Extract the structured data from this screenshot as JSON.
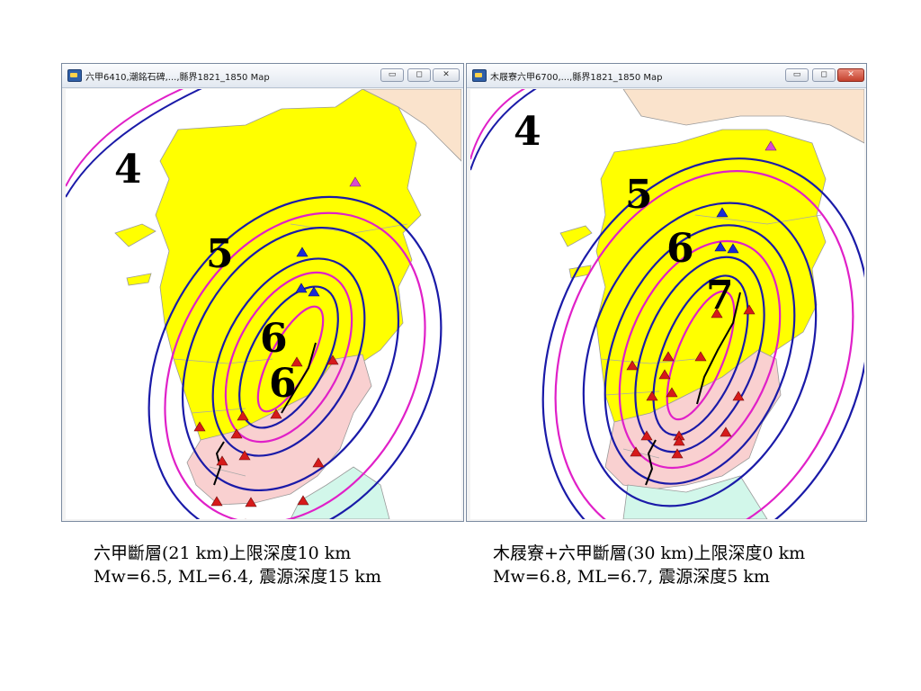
{
  "windows": [
    {
      "title": "六甲6410,潮銘石碑,...,縣界1821_1850 Map",
      "controls": {
        "minimize": "▭",
        "maximize": "◻",
        "close": "✕"
      },
      "intensity_labels": [
        "4",
        "5",
        "6",
        "6"
      ]
    },
    {
      "title": "木屐寮六甲6700,...,縣界1821_1850 Map",
      "controls": {
        "minimize": "▭",
        "maximize": "◻",
        "close": "✕"
      },
      "intensity_labels": [
        "4",
        "5",
        "6",
        "7"
      ]
    }
  ],
  "captions": [
    {
      "line1": "六甲斷層(21 km)上限深度10 km",
      "line2": "Mw=6.5, ML=6.4, 震源深度15 km"
    },
    {
      "line1": "木屐寮+六甲斷層(30 km)上限深度0 km",
      "line2": "Mw=6.8, ML=6.7, 震源深度5 km"
    }
  ],
  "colors": {
    "land_yellow": "#ffff00",
    "land_pink": "#f9d0d0",
    "land_peach": "#fae3cc",
    "land_cyan": "#d2f7ea",
    "contour_blue": "#1a1aa8",
    "contour_magenta": "#e020c8",
    "station_red": "#d61a1a",
    "station_blue": "#1a2ad6",
    "station_magenta": "#d84ad0",
    "fault": "#000000"
  }
}
